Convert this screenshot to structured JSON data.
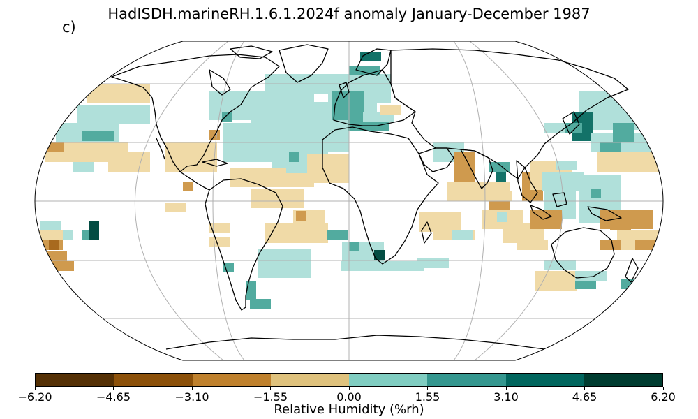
{
  "title": "HadISDH.marineRH.1.6.1.2024f anomaly January-December 1987",
  "panel_label": "c)",
  "colorbar": {
    "label": "Relative Humidity (%rh)",
    "ticks": [
      "−6.20",
      "−4.65",
      "−3.10",
      "−1.55",
      "0.00",
      "1.55",
      "3.10",
      "4.65",
      "6.20"
    ],
    "colors": [
      "#543005",
      "#8c510a",
      "#bf812d",
      "#dfc27d",
      "#80cdc1",
      "#35978f",
      "#01665e",
      "#003c30"
    ]
  },
  "map": {
    "projection": "Robinson",
    "gridlines": true,
    "cell_colors": {
      "neg1": "#f0daa7",
      "neg2": "#cf9a4e",
      "neg3": "#a86a1e",
      "pos1": "#b0e0da",
      "pos2": "#52ab9f",
      "pos3": "#137268",
      "pos4": "#034d43"
    }
  }
}
